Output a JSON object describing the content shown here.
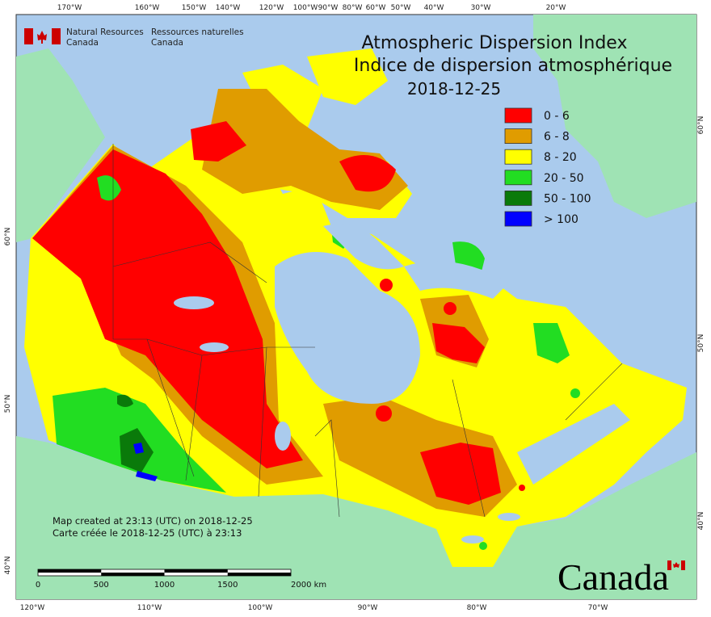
{
  "header": {
    "title": "Atmospheric Dispersion Index",
    "title_fr": "Indice de dispersion atmosphérique",
    "date": "2018-12-25"
  },
  "agency": {
    "en_line1": "Natural Resources",
    "en_line2": "Canada",
    "fr_line1": "Ressources naturelles",
    "fr_line2": "Canada"
  },
  "legend": {
    "items": [
      {
        "label": "0 - 6",
        "color": "#ff0000"
      },
      {
        "label": "6 - 8",
        "color": "#e09c00"
      },
      {
        "label": "8 - 20",
        "color": "#ffff00"
      },
      {
        "label": "20 - 50",
        "color": "#22dd22"
      },
      {
        "label": "50 - 100",
        "color": "#0a7a0a"
      },
      {
        "label": "> 100",
        "color": "#0000ff"
      }
    ]
  },
  "credits": {
    "en": "Map created at 23:13 (UTC) on 2018-12-25",
    "fr": "Carte créée le 2018-12-25 (UTC) à 23:13"
  },
  "scale_bar": {
    "labels": [
      "0",
      "500",
      "1000",
      "1500",
      "2000 km"
    ]
  },
  "graticule": {
    "top": [
      "170°W",
      "160°W",
      "150°W",
      "140°W",
      "120°W",
      "100°W",
      "90°W",
      "80°W",
      "60°W",
      "50°W",
      "40°W",
      "30°W",
      "20°W"
    ],
    "bottom": [
      "120°W",
      "110°W",
      "100°W",
      "90°W",
      "80°W",
      "70°W"
    ],
    "left": [
      "60°N",
      "50°N",
      "40°N"
    ],
    "right": [
      "60°N",
      "50°N",
      "40°N"
    ]
  },
  "wordmark": "Canada"
}
